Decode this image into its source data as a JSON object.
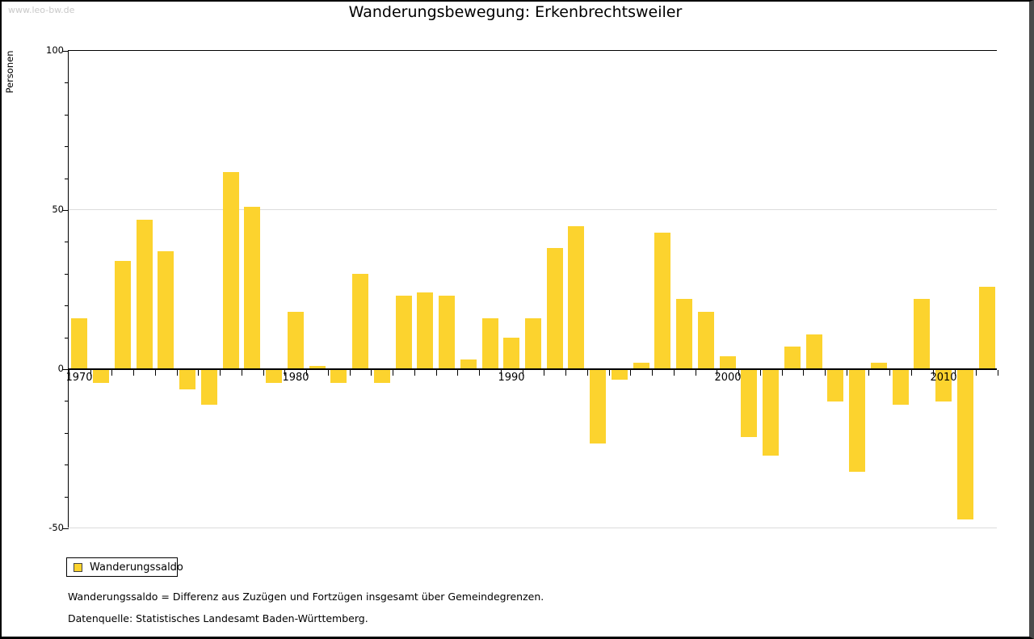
{
  "watermark": "www.leo-bw.de",
  "title": "Wanderungsbewegung: Erkenbrechtsweiler",
  "y_axis": {
    "label": "Personen",
    "tick_labels": [
      100,
      50,
      0,
      -50
    ]
  },
  "x_axis": {
    "decade_labels": [
      "1970",
      "1980",
      "1990",
      "2000",
      "2010"
    ]
  },
  "legend": {
    "label": "Wanderungssaldo"
  },
  "footnotes": {
    "definition": "Wanderungssaldo = Differenz aus Zuzügen und Fortzügen insgesamt über Gemeindegrenzen.",
    "source": "Datenquelle: Statistisches Landesamt Baden-Württemberg."
  },
  "colors": {
    "bar": "#fcd32e",
    "grid": "#dcdcdc",
    "axis": "#000000",
    "watermark": "#c9c9c9",
    "window_border": "#4a4a4a"
  },
  "chart_data": {
    "type": "bar",
    "title": "Wanderungsbewegung: Erkenbrechtsweiler",
    "series_name": "Wanderungssaldo",
    "xlabel": "",
    "ylabel": "Personen",
    "ylim": [
      -50,
      100
    ],
    "y_major_ticks": [
      100,
      50,
      0,
      -50
    ],
    "y_minor_tick_step": 10,
    "grid_values": [
      50,
      -50
    ],
    "legend_position": "bottom-left",
    "x": [
      1970,
      1971,
      1972,
      1973,
      1974,
      1975,
      1976,
      1977,
      1978,
      1979,
      1980,
      1981,
      1982,
      1983,
      1984,
      1985,
      1986,
      1987,
      1988,
      1989,
      1990,
      1991,
      1992,
      1993,
      1994,
      1995,
      1996,
      1997,
      1998,
      1999,
      2000,
      2001,
      2002,
      2003,
      2004,
      2005,
      2006,
      2007,
      2008,
      2009,
      2010,
      2011,
      2012
    ],
    "values": [
      16,
      -4,
      34,
      47,
      37,
      -6,
      -11,
      62,
      51,
      -4,
      18,
      1,
      -4,
      30,
      -4,
      23,
      24,
      23,
      3,
      16,
      10,
      16,
      38,
      45,
      -23,
      -3,
      2,
      43,
      22,
      18,
      4,
      -21,
      -27,
      7,
      11,
      -10,
      -32,
      2,
      -11,
      22,
      -10,
      -47,
      26
    ]
  }
}
